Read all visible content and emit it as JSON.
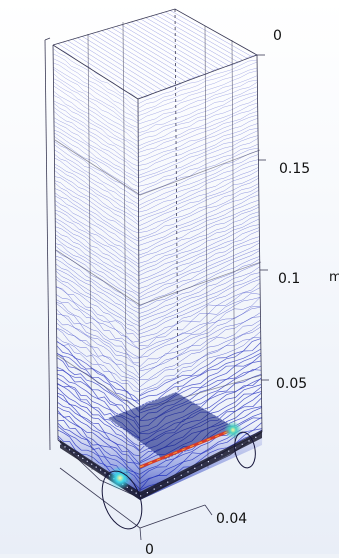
{
  "viewport": {
    "axis_ticks": {
      "z_top": "0",
      "z1": "0.15",
      "z2": "0.1",
      "z3": "0.05",
      "x_right": "0.04",
      "x_bottom": "0"
    },
    "axis_unit": "m"
  },
  "colors": {
    "streamline": "#3b45c7",
    "streamline_dense": "#0b1fb0",
    "hot_line": "#d63a2a",
    "hot_glow": "#f1e84b",
    "cool_glow": "#3cd6e8",
    "grid": "#3a3a55"
  }
}
